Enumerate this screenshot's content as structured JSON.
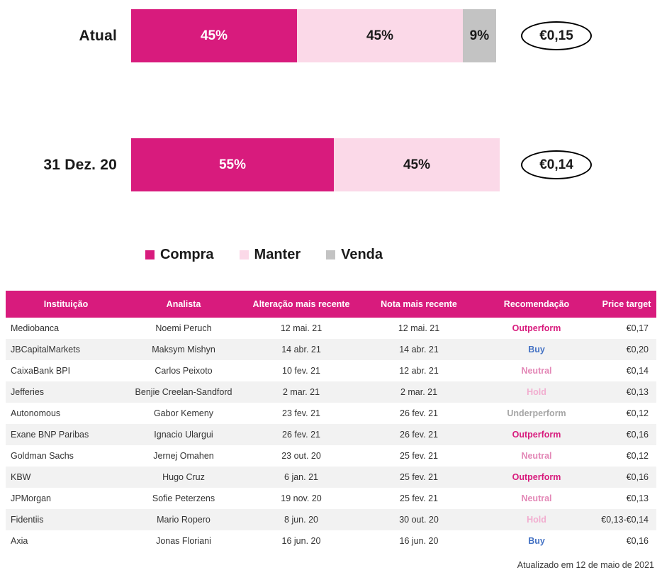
{
  "chart_data": {
    "type": "bar",
    "orientation": "horizontal",
    "stacked": true,
    "title": "",
    "categories": [
      "Atual",
      "31 Dez. 20"
    ],
    "series": [
      {
        "name": "Compra",
        "color": "#d81b7d",
        "label_color": "#ffffff",
        "values": [
          45,
          55
        ],
        "labels": [
          "45%",
          "55%"
        ]
      },
      {
        "name": "Manter",
        "color": "#fbd9e8",
        "label_color": "#1a1a1a",
        "values": [
          45,
          45
        ],
        "labels": [
          "45%",
          "45%"
        ]
      },
      {
        "name": "Venda",
        "color": "#c3c3c3",
        "label_color": "#1a1a1a",
        "values": [
          9,
          0
        ],
        "labels": [
          "9%",
          ""
        ]
      }
    ],
    "annotations": [
      "€0,15",
      "€0,14"
    ],
    "xlim": [
      0,
      100
    ],
    "legend_position": "bottom"
  },
  "table": {
    "headers": [
      "Instituição",
      "Analista",
      "Alteração mais recente",
      "Nota mais recente",
      "Recomendação",
      "Price target"
    ],
    "rows": [
      {
        "institution": "Mediobanca",
        "analyst": "Noemi Peruch",
        "last_change": "12 mai. 21",
        "last_note": "12 mai. 21",
        "recommendation": "Outperform",
        "price_target": "€0,17"
      },
      {
        "institution": "JBCapitalMarkets",
        "analyst": "Maksym Mishyn",
        "last_change": "14 abr. 21",
        "last_note": "14 abr. 21",
        "recommendation": "Buy",
        "price_target": "€0,20"
      },
      {
        "institution": "CaixaBank BPI",
        "analyst": "Carlos Peixoto",
        "last_change": "10 fev. 21",
        "last_note": "12 abr. 21",
        "recommendation": "Neutral",
        "price_target": "€0,14"
      },
      {
        "institution": "Jefferies",
        "analyst": "Benjie Creelan-Sandford",
        "last_change": "2 mar. 21",
        "last_note": "2 mar. 21",
        "recommendation": "Hold",
        "price_target": "€0,13"
      },
      {
        "institution": "Autonomous",
        "analyst": "Gabor Kemeny",
        "last_change": "23 fev. 21",
        "last_note": "26 fev. 21",
        "recommendation": "Underperform",
        "price_target": "€0,12"
      },
      {
        "institution": "Exane BNP Paribas",
        "analyst": "Ignacio Ulargui",
        "last_change": "26 fev. 21",
        "last_note": "26 fev. 21",
        "recommendation": "Outperform",
        "price_target": "€0,16"
      },
      {
        "institution": "Goldman Sachs",
        "analyst": "Jernej Omahen",
        "last_change": "23 out. 20",
        "last_note": "25 fev. 21",
        "recommendation": "Neutral",
        "price_target": "€0,12"
      },
      {
        "institution": "KBW",
        "analyst": "Hugo Cruz",
        "last_change": "6 jan. 21",
        "last_note": "25 fev. 21",
        "recommendation": "Outperform",
        "price_target": "€0,16"
      },
      {
        "institution": "JPMorgan",
        "analyst": "Sofie Peterzens",
        "last_change": "19 nov. 20",
        "last_note": "25 fev. 21",
        "recommendation": "Neutral",
        "price_target": "€0,13"
      },
      {
        "institution": "Fidentiis",
        "analyst": "Mario Ropero",
        "last_change": "8 jun. 20",
        "last_note": "30 out. 20",
        "recommendation": "Hold",
        "price_target": "€0,13-€0,14"
      },
      {
        "institution": "Axia",
        "analyst": "Jonas Floriani",
        "last_change": "16 jun. 20",
        "last_note": "16 jun. 20",
        "recommendation": "Buy",
        "price_target": "€0,16"
      }
    ]
  },
  "colors": {
    "header_bg": "#d81b7d",
    "row_alt_bg": "#f2f2f2",
    "recommendations": {
      "Outperform": "#d81b7d",
      "Buy": "#4472c4",
      "Neutral": "#e387b6",
      "Hold": "#f2aed0",
      "Underperform": "#a6a6a6"
    }
  },
  "footer": {
    "updated": "Atualizado em 12 de maio de 2021"
  }
}
